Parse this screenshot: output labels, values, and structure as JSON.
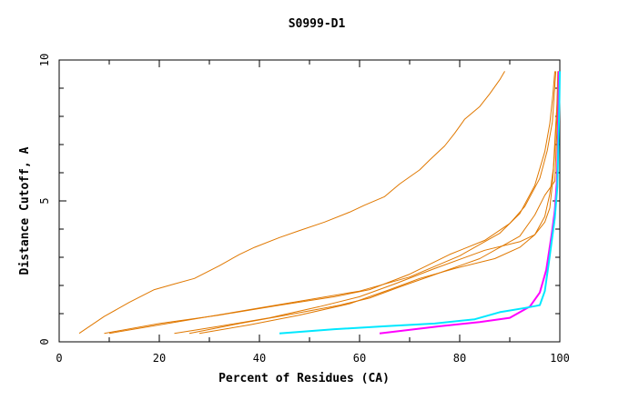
{
  "chart_data": {
    "type": "line",
    "title": "S0999-D1",
    "xlabel": "Percent of Residues (CA)",
    "ylabel": "Distance Cutoff, A",
    "xlim": [
      0,
      100
    ],
    "ylim": [
      0,
      10
    ],
    "x_ticks": [
      "0",
      "20",
      "40",
      "60",
      "80",
      "100"
    ],
    "y_ticks": [
      "0",
      "5",
      "10"
    ],
    "grid": false,
    "legend": "none",
    "series": [
      {
        "color": "#e07800",
        "points": [
          [
            4,
            0.3
          ],
          [
            9,
            0.9
          ],
          [
            14,
            1.4
          ],
          [
            19,
            1.85
          ],
          [
            23,
            2.05
          ],
          [
            27,
            2.25
          ],
          [
            32,
            2.7
          ],
          [
            36,
            3.1
          ],
          [
            39,
            3.35
          ],
          [
            44,
            3.7
          ],
          [
            48,
            3.95
          ],
          [
            53,
            4.25
          ],
          [
            58,
            4.6
          ],
          [
            61,
            4.85
          ],
          [
            65,
            5.15
          ],
          [
            68,
            5.6
          ],
          [
            72,
            6.1
          ],
          [
            74,
            6.45
          ],
          [
            77,
            6.95
          ],
          [
            79,
            7.4
          ],
          [
            81,
            7.9
          ],
          [
            84,
            8.35
          ],
          [
            86,
            8.8
          ],
          [
            88,
            9.3
          ],
          [
            89,
            9.6
          ]
        ]
      },
      {
        "color": "#e07800",
        "points": [
          [
            10,
            0.3
          ],
          [
            20,
            0.6
          ],
          [
            30,
            0.9
          ],
          [
            40,
            1.2
          ],
          [
            50,
            1.5
          ],
          [
            60,
            1.8
          ],
          [
            70,
            2.3
          ],
          [
            80,
            3.05
          ],
          [
            88,
            3.85
          ],
          [
            92,
            4.55
          ],
          [
            95,
            5.55
          ],
          [
            97,
            6.75
          ],
          [
            98,
            7.75
          ],
          [
            98.6,
            8.75
          ],
          [
            99,
            9.6
          ]
        ]
      },
      {
        "color": "#e07800",
        "points": [
          [
            9,
            0.3
          ],
          [
            20,
            0.65
          ],
          [
            32,
            0.95
          ],
          [
            44,
            1.3
          ],
          [
            55,
            1.6
          ],
          [
            62,
            1.85
          ],
          [
            70,
            2.4
          ],
          [
            78,
            3.1
          ],
          [
            85,
            3.6
          ],
          [
            90,
            4.2
          ],
          [
            93,
            4.8
          ],
          [
            96,
            5.8
          ],
          [
            97.5,
            6.8
          ],
          [
            98.5,
            7.8
          ],
          [
            99.2,
            9.6
          ]
        ]
      },
      {
        "color": "#e07800",
        "points": [
          [
            23,
            0.3
          ],
          [
            32,
            0.55
          ],
          [
            42,
            0.85
          ],
          [
            52,
            1.25
          ],
          [
            60,
            1.6
          ],
          [
            67,
            2.05
          ],
          [
            75,
            2.6
          ],
          [
            85,
            3.25
          ],
          [
            92,
            3.55
          ],
          [
            95,
            3.8
          ],
          [
            97,
            4.25
          ],
          [
            98,
            4.75
          ],
          [
            98.5,
            5.6
          ],
          [
            99,
            6.8
          ],
          [
            99.4,
            8.3
          ],
          [
            99.6,
            9.6
          ]
        ]
      },
      {
        "color": "#e07800",
        "points": [
          [
            26,
            0.3
          ],
          [
            36,
            0.65
          ],
          [
            47,
            1.0
          ],
          [
            56,
            1.3
          ],
          [
            62,
            1.55
          ],
          [
            68,
            1.95
          ],
          [
            76,
            2.45
          ],
          [
            84,
            2.95
          ],
          [
            89,
            3.45
          ],
          [
            92,
            3.75
          ],
          [
            95,
            4.5
          ],
          [
            97,
            5.2
          ],
          [
            99,
            5.7
          ],
          [
            99.4,
            7.4
          ],
          [
            99.7,
            9.6
          ]
        ]
      },
      {
        "color": "#e07800",
        "points": [
          [
            28,
            0.3
          ],
          [
            38,
            0.6
          ],
          [
            48,
            0.95
          ],
          [
            58,
            1.35
          ],
          [
            66,
            1.85
          ],
          [
            72,
            2.25
          ],
          [
            79,
            2.6
          ],
          [
            87,
            2.95
          ],
          [
            92,
            3.35
          ],
          [
            95,
            3.8
          ],
          [
            97,
            4.45
          ],
          [
            98,
            5.25
          ],
          [
            98.7,
            6.15
          ],
          [
            99.1,
            7.4
          ],
          [
            99.5,
            8.6
          ],
          [
            99.7,
            9.6
          ]
        ]
      },
      {
        "color": "#ff00ff",
        "points": [
          [
            64,
            0.3
          ],
          [
            76,
            0.55
          ],
          [
            84,
            0.7
          ],
          [
            90,
            0.85
          ],
          [
            94,
            1.25
          ],
          [
            96,
            1.75
          ],
          [
            97.3,
            2.55
          ],
          [
            97.8,
            3.15
          ],
          [
            98.4,
            3.85
          ],
          [
            99.0,
            4.65
          ],
          [
            99.4,
            5.65
          ],
          [
            99.6,
            6.85
          ],
          [
            99.7,
            8.2
          ],
          [
            99.8,
            9.6
          ]
        ]
      },
      {
        "color": "#00e8ff",
        "points": [
          [
            44,
            0.3
          ],
          [
            55,
            0.45
          ],
          [
            65,
            0.55
          ],
          [
            75,
            0.65
          ],
          [
            83,
            0.8
          ],
          [
            88,
            1.05
          ],
          [
            93,
            1.2
          ],
          [
            96,
            1.3
          ],
          [
            97,
            1.8
          ],
          [
            97.8,
            2.8
          ],
          [
            98.4,
            3.6
          ],
          [
            99.0,
            4.4
          ],
          [
            99.5,
            5.5
          ],
          [
            99.7,
            7
          ],
          [
            99.9,
            8.5
          ],
          [
            100,
            9.6
          ]
        ]
      }
    ]
  }
}
